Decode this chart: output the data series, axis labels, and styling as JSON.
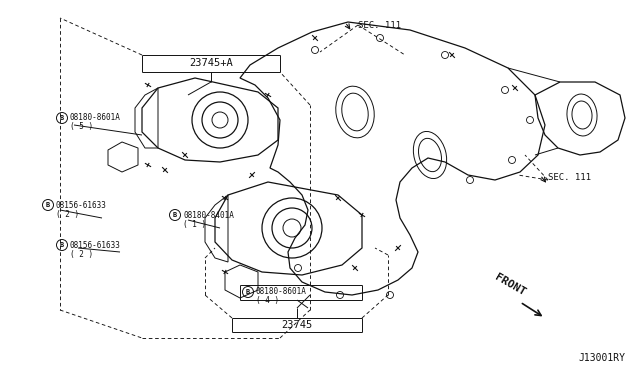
{
  "bg_color": "#ffffff",
  "line_color": "#111111",
  "fig_width": 6.4,
  "fig_height": 3.72,
  "dpi": 100,
  "labels": {
    "sec111_top": "SEC. 111",
    "sec111_right": "SEC. 111",
    "label_23745a": "23745+A",
    "label_23745": "23745",
    "label_08180_8601A_5": "08180-8601A",
    "label_08180_8601A_5_qty": "( 5 )",
    "label_08180_8401A": "08180-8401A",
    "label_08180_8401A_qty": "( 1 )",
    "label_08156_61633_2a": "08156-61633",
    "label_08156_61633_2a_qty": "( 2 )",
    "label_08156_61633_2b": "08156-61633",
    "label_08156_61633_2b_qty": "( 2 )",
    "label_08180_8601A_4": "08180-8601A",
    "label_08180_8601A_4_qty": "( 4 )",
    "front": "FRONT",
    "code": "J13001RY"
  }
}
